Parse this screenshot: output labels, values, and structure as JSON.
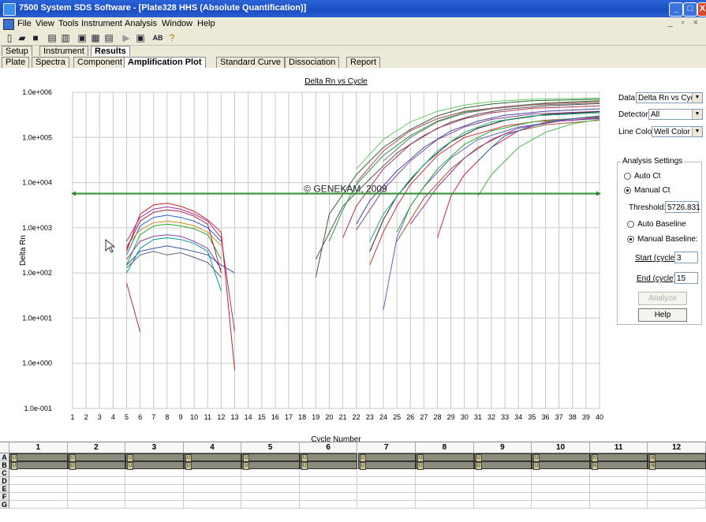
{
  "window": {
    "title": "7500 System SDS Software - [Plate328 HHS (Absolute Quantification)]"
  },
  "menu": [
    "File",
    "View",
    "Tools",
    "Instrument",
    "Analysis",
    "Window",
    "Help"
  ],
  "toolbar": {
    "icons": [
      "new-document-icon",
      "open-folder-icon",
      "save-icon",
      "print-icon",
      "print-preview-icon",
      "zoom-icon",
      "chart-icon",
      "layout-icon",
      "run-icon",
      "stop-icon",
      "ab-icon",
      "help-icon"
    ],
    "ab_label": "AB"
  },
  "tabs_top": [
    "Setup",
    "Instrument",
    "Results"
  ],
  "tabs_top_active": "Results",
  "tabs_sub": [
    "Plate",
    "Spectra",
    "Component",
    "Amplification Plot",
    "Standard Curve",
    "Dissociation",
    "Report"
  ],
  "tabs_sub_active": "Amplification Plot",
  "settings": {
    "data_label": "Data:",
    "data_value": "Delta Rn vs Cycle",
    "detector_label": "Detector:",
    "detector_value": "All",
    "line_color_label": "Line Color:",
    "line_color_value": "Well Color",
    "analysis_title": "Analysis Settings",
    "auto_ct": "Auto Ct",
    "manual_ct": "Manual Ct",
    "threshold_label": "Threshold:",
    "threshold_value": "5726.831",
    "auto_baseline": "Auto Baseline",
    "manual_baseline": "Manual Baseline:",
    "start_label": "Start (cycle):",
    "start_value": "3",
    "end_label": "End (cycle):",
    "end_value": "15",
    "analyze_label": "Analyze",
    "help_label": "Help"
  },
  "chart_data": {
    "type": "line",
    "title": "Delta Rn vs Cycle",
    "xlabel": "Cycle Number",
    "ylabel": "Delta Rn",
    "xlim": [
      1,
      40
    ],
    "ylim": [
      0.1,
      1000000
    ],
    "yscale": "log",
    "x_ticks": [
      1,
      2,
      3,
      4,
      5,
      6,
      7,
      8,
      9,
      10,
      11,
      12,
      13,
      14,
      15,
      16,
      17,
      18,
      19,
      20,
      21,
      22,
      23,
      24,
      25,
      26,
      27,
      28,
      29,
      30,
      31,
      32,
      33,
      34,
      35,
      36,
      37,
      38,
      39,
      40
    ],
    "y_tick_labels": [
      "1.0e+006",
      "1.0e+005",
      "1.0e+004",
      "1.0e+003",
      "1.0e+002",
      "1.0e+001",
      "1.0e+000",
      "1.0e-001"
    ],
    "y_tick_values": [
      1000000,
      100000,
      10000,
      1000,
      100,
      10,
      1,
      0.1
    ],
    "grid": true,
    "threshold": 5726.831,
    "threshold_color": "#2e8b2e",
    "watermark": "© GENEKAM, 2009",
    "series": [
      {
        "color": "#cc2222",
        "x": [
          5,
          6,
          7,
          8,
          9,
          10,
          11,
          12
        ],
        "y": [
          300,
          2000,
          3200,
          3500,
          3000,
          2300,
          1500,
          800
        ]
      },
      {
        "color": "#993399",
        "x": [
          5,
          6,
          7,
          8,
          9,
          10,
          11,
          12,
          13
        ],
        "y": [
          500,
          1700,
          2600,
          2900,
          2600,
          2000,
          1400,
          600,
          5
        ]
      },
      {
        "color": "#2266cc",
        "x": [
          5,
          6,
          7,
          8,
          9,
          10,
          11,
          12
        ],
        "y": [
          250,
          1100,
          1700,
          1900,
          1700,
          1400,
          1000,
          500
        ]
      },
      {
        "color": "#22aa22",
        "x": [
          5,
          6,
          7,
          8,
          9,
          10,
          11,
          12
        ],
        "y": [
          150,
          700,
          1100,
          1200,
          1100,
          950,
          700,
          200
        ]
      },
      {
        "color": "#cc8822",
        "x": [
          5,
          6,
          7,
          8,
          9,
          10,
          11,
          12
        ],
        "y": [
          400,
          900,
          1300,
          1400,
          1300,
          1100,
          800,
          400
        ]
      },
      {
        "color": "#8844aa",
        "x": [
          5,
          6,
          7,
          8,
          9,
          10,
          11,
          12
        ],
        "y": [
          200,
          500,
          650,
          700,
          650,
          500,
          350,
          120
        ]
      },
      {
        "color": "#3355aa",
        "x": [
          5,
          6,
          7,
          8,
          9,
          10,
          11,
          12,
          13
        ],
        "y": [
          150,
          300,
          350,
          400,
          350,
          300,
          250,
          150,
          100
        ]
      },
      {
        "color": "#aa3333",
        "x": [
          5,
          6
        ],
        "y": [
          60,
          5
        ]
      },
      {
        "color": "#009999",
        "x": [
          5,
          6,
          7,
          8,
          9,
          10,
          11,
          12
        ],
        "y": [
          100,
          350,
          550,
          600,
          550,
          450,
          300,
          40
        ]
      },
      {
        "color": "#556677",
        "x": [
          5,
          6,
          7,
          8,
          9,
          10,
          11,
          12
        ],
        "y": [
          130,
          250,
          300,
          250,
          280,
          220,
          170,
          80
        ]
      },
      {
        "color": "#cc2222",
        "x": [
          12,
          13
        ],
        "y": [
          800,
          0.7
        ]
      },
      {
        "color": "#aa2244",
        "x": [
          5,
          6,
          7,
          8,
          9,
          10,
          11,
          12
        ],
        "y": [
          350,
          1400,
          2200,
          2500,
          2300,
          1800,
          1200,
          100
        ]
      },
      {
        "color": "#336633",
        "x": [
          19,
          20,
          22,
          24,
          26,
          28,
          30,
          32,
          35,
          40
        ],
        "y": [
          80,
          2000,
          15000,
          60000,
          150000,
          300000,
          450000,
          550000,
          650000,
          700000
        ]
      },
      {
        "color": "#555555",
        "x": [
          19,
          21,
          23,
          25,
          27,
          29,
          31,
          33,
          36,
          40
        ],
        "y": [
          200,
          3000,
          12000,
          45000,
          110000,
          220000,
          330000,
          420000,
          500000,
          560000
        ]
      },
      {
        "color": "#229933",
        "x": [
          20,
          21,
          22,
          24,
          26,
          28,
          30,
          33,
          36,
          40
        ],
        "y": [
          500,
          2500,
          9000,
          40000,
          110000,
          230000,
          360000,
          480000,
          580000,
          650000
        ]
      },
      {
        "color": "#aa3355",
        "x": [
          21,
          22,
          24,
          26,
          28,
          30,
          32,
          35,
          40
        ],
        "y": [
          600,
          3000,
          20000,
          70000,
          160000,
          260000,
          350000,
          440000,
          500000
        ]
      },
      {
        "color": "#4444aa",
        "x": [
          22,
          23,
          25,
          27,
          29,
          31,
          33,
          36,
          40
        ],
        "y": [
          1200,
          4000,
          18000,
          60000,
          140000,
          230000,
          310000,
          380000,
          430000
        ]
      },
      {
        "color": "#884488",
        "x": [
          22,
          23,
          24,
          26,
          28,
          30,
          32,
          35,
          40
        ],
        "y": [
          900,
          2500,
          7000,
          30000,
          90000,
          170000,
          250000,
          330000,
          380000
        ]
      },
      {
        "color": "#222222",
        "x": [
          23,
          24,
          25,
          27,
          29,
          31,
          33,
          36,
          40
        ],
        "y": [
          300,
          1500,
          5000,
          25000,
          80000,
          160000,
          240000,
          320000,
          370000
        ]
      },
      {
        "color": "#22aa77",
        "x": [
          23,
          24,
          26,
          28,
          30,
          32,
          35,
          40
        ],
        "y": [
          500,
          2000,
          12000,
          50000,
          130000,
          220000,
          300000,
          350000
        ]
      },
      {
        "color": "#cc3333",
        "x": [
          23,
          24,
          25,
          26,
          28,
          30,
          33,
          36,
          40
        ],
        "y": [
          150,
          800,
          3000,
          9000,
          40000,
          100000,
          180000,
          240000,
          280000
        ]
      },
      {
        "color": "#5566bb",
        "x": [
          24,
          25,
          26,
          27,
          29,
          31,
          34,
          37,
          40
        ],
        "y": [
          15,
          600,
          3000,
          8000,
          35000,
          90000,
          170000,
          230000,
          260000
        ]
      },
      {
        "color": "#33aa33",
        "x": [
          25,
          26,
          27,
          28,
          30,
          32,
          35,
          40
        ],
        "y": [
          800,
          3000,
          8000,
          20000,
          70000,
          140000,
          220000,
          290000
        ]
      },
      {
        "color": "#aa5533",
        "x": [
          25,
          26,
          27,
          29,
          31,
          33,
          36,
          40
        ],
        "y": [
          500,
          1500,
          4500,
          20000,
          60000,
          120000,
          190000,
          240000
        ]
      },
      {
        "color": "#993399",
        "x": [
          26,
          27,
          28,
          30,
          32,
          34,
          37,
          40
        ],
        "y": [
          1200,
          3000,
          8000,
          35000,
          90000,
          160000,
          230000,
          270000
        ]
      },
      {
        "color": "#cc2255",
        "x": [
          28,
          29,
          30,
          32,
          34,
          36,
          40
        ],
        "y": [
          600,
          5000,
          15000,
          60000,
          140000,
          220000,
          300000
        ]
      },
      {
        "color": "#2277aa",
        "x": [
          31,
          32,
          33,
          35,
          37,
          40
        ],
        "y": [
          30000,
          60000,
          110000,
          180000,
          240000,
          300000
        ]
      },
      {
        "color": "#44bb44",
        "x": [
          31,
          32,
          34,
          36,
          38,
          40
        ],
        "y": [
          5000,
          15000,
          60000,
          130000,
          200000,
          250000
        ]
      },
      {
        "color": "#66cc66",
        "x": [
          22,
          24,
          26,
          28,
          30,
          32,
          35,
          40
        ],
        "y": [
          20000,
          90000,
          220000,
          380000,
          520000,
          620000,
          700000,
          750000
        ]
      },
      {
        "color": "#bb4466",
        "x": [
          22,
          24,
          26,
          28,
          30,
          33,
          36,
          40
        ],
        "y": [
          10000,
          50000,
          140000,
          260000,
          380000,
          480000,
          560000,
          620000
        ]
      },
      {
        "color": "#777777",
        "x": [
          24,
          26,
          28,
          30,
          32,
          35,
          40
        ],
        "y": [
          30000,
          100000,
          220000,
          340000,
          430000,
          520000,
          580000
        ]
      }
    ]
  },
  "wellgrid": {
    "columns": [
      "1",
      "2",
      "3",
      "4",
      "5",
      "6",
      "7",
      "8",
      "9",
      "10",
      "11",
      "12"
    ],
    "rows": [
      "A",
      "B",
      "C",
      "D",
      "E",
      "F",
      "G"
    ],
    "filled_rows": [
      "A",
      "B"
    ],
    "well_marks": {
      "A": [
        "U",
        "U",
        "U",
        "U",
        "U",
        "U",
        "U",
        "U",
        "U",
        "U",
        "N",
        "N"
      ],
      "B": [
        "U",
        "U",
        "U",
        "U",
        "U",
        "U",
        "U",
        "U",
        "U",
        "U",
        "N",
        "N"
      ]
    }
  }
}
